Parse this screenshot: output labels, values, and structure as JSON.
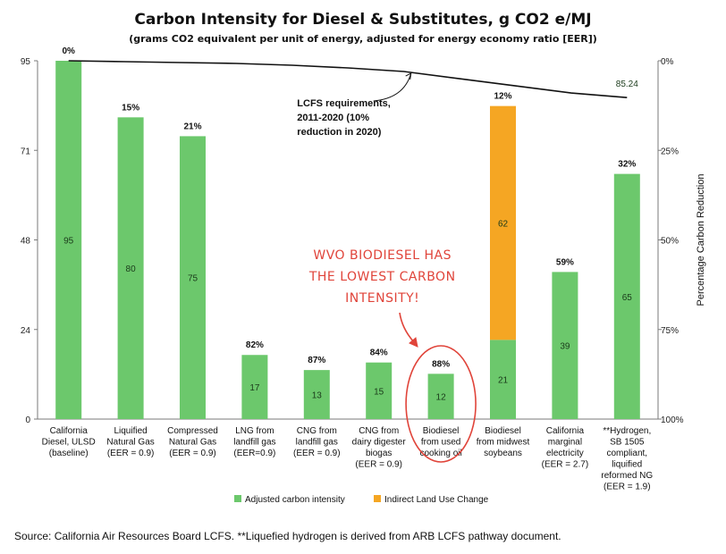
{
  "chart_data": {
    "type": "bar",
    "title": "Carbon Intensity for Diesel & Substitutes, g CO2 e/MJ",
    "subtitle": "(grams CO2 equivalent per unit of energy, adjusted for energy economy ratio [EER])",
    "xlabel": "",
    "ylabel": "",
    "y2label": "Percentage Carbon Reduction",
    "ylim": [
      0,
      95
    ],
    "yticks": [
      "0",
      "24",
      "48",
      "71",
      "95"
    ],
    "y2ticks": [
      "0%",
      "25%",
      "50%",
      "75%",
      "100%"
    ],
    "categories": [
      [
        "California",
        "Diesel, ULSD",
        "(baseline)"
      ],
      [
        "Liquified",
        "Natural Gas",
        "(EER = 0.9)"
      ],
      [
        "Compressed",
        "Natural Gas",
        "(EER = 0.9)"
      ],
      [
        "LNG from",
        "landfill gas",
        "(EER=0.9)"
      ],
      [
        "CNG from",
        "landfill gas",
        "(EER = 0.9)"
      ],
      [
        "CNG from",
        "dairy digester",
        "biogas",
        "(EER = 0.9)"
      ],
      [
        "Biodiesel",
        "from used",
        "cooking oil"
      ],
      [
        "Biodiesel",
        "from midwest",
        "soybeans"
      ],
      [
        "California",
        "marginal",
        "electricity",
        "(EER = 2.7)"
      ],
      [
        "**Hydrogen,",
        "SB 1505",
        "compliant,",
        "liquified",
        "reformed NG",
        "(EER = 1.9)"
      ]
    ],
    "series": [
      {
        "name": "Adjusted carbon intensity",
        "color": "#6cc86c",
        "values": [
          95,
          80,
          75,
          17,
          13,
          15,
          12,
          21,
          39,
          65
        ]
      },
      {
        "name": "Indirect Land Use Change",
        "color": "#f5a623",
        "values": [
          null,
          null,
          null,
          null,
          null,
          null,
          null,
          62,
          null,
          null
        ]
      }
    ],
    "bar_value_labels": [
      "95",
      "80",
      "75",
      "17",
      "13",
      "15",
      "12",
      "21",
      "39",
      "65"
    ],
    "stack_value_labels": [
      "",
      "",
      "",
      "",
      "",
      "",
      "",
      "62",
      "",
      ""
    ],
    "percent_reduction_labels": [
      "0%",
      "15%",
      "21%",
      "82%",
      "87%",
      "84%",
      "88%",
      "12%",
      "59%",
      "32%"
    ],
    "lcfs_line": {
      "values": [
        95,
        94.76,
        94.52,
        94.29,
        93.81,
        93.1,
        92.15,
        90.25,
        88.35,
        86.45,
        85.24
      ],
      "end_label": "85.24",
      "annotation": [
        "LCFS requirements,",
        "2011-2020 (10%",
        "reduction in 2020)"
      ]
    },
    "callout": [
      "WVO BIODIESEL HAS",
      "THE LOWEST CARBON",
      "INTENSITY!"
    ],
    "legend_position": "bottom"
  },
  "source_note": "Source: California Air Resources Board LCFS. **Liquefied hydrogen is derived from ARB LCFS pathway document."
}
